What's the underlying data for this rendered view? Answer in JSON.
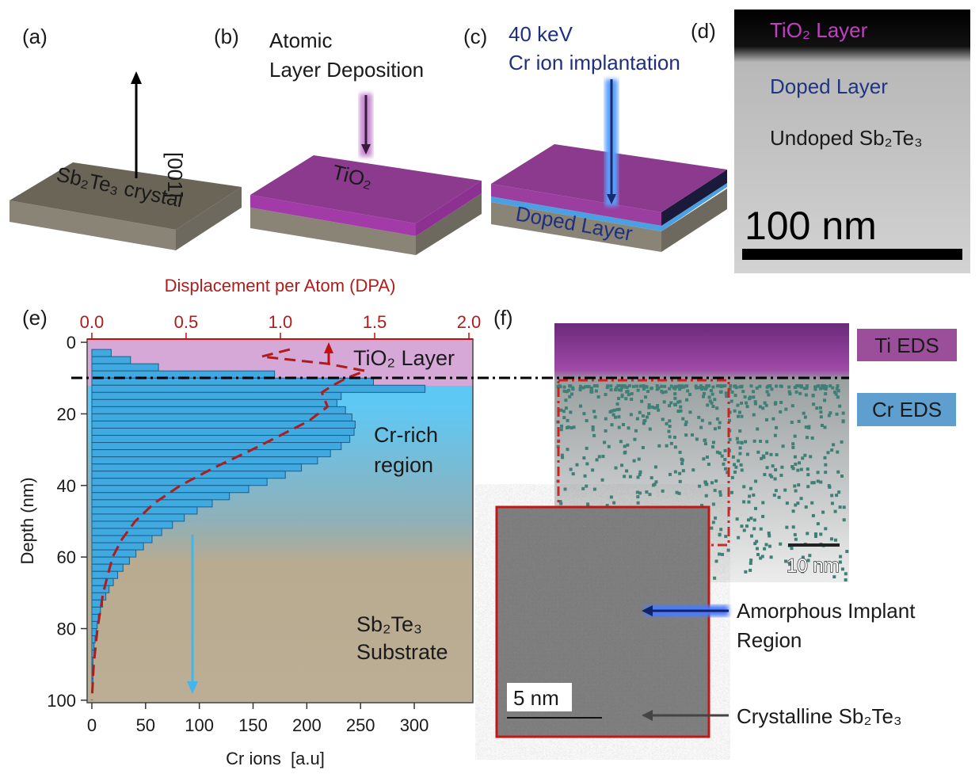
{
  "panels": {
    "a": {
      "label": "(a)",
      "crystal": "Sb₂Te₃ crystal",
      "direction": "[001]"
    },
    "b": {
      "label": "(b)",
      "process": [
        "Atomic",
        "Layer Deposition"
      ],
      "layer": "TiO₂"
    },
    "c": {
      "label": "(c)",
      "process": [
        "40 keV",
        "Cr ion implantation"
      ],
      "layer": "Doped Layer"
    },
    "d": {
      "label": "(d)",
      "layers": [
        "TiO₂ Layer",
        "Doped Layer",
        "Undoped Sb₂Te₃"
      ],
      "scale": "100 nm"
    },
    "e": {
      "label": "(e)"
    },
    "f": {
      "label": "(f)",
      "ti_eds": "Ti EDS",
      "cr_eds": "Cr EDS",
      "map_scale": "10 nm",
      "inset_scale": "5 nm",
      "amorphous": [
        "Amorphous Implant",
        "Region"
      ],
      "crystalline": "Crystalline Sb₂Te₃"
    }
  },
  "chart_data": {
    "type": "histogram",
    "orientation": "horizontal",
    "x_label": "Cr ions  [a.u]",
    "x2_label": "Displacement per Atom (DPA)",
    "y_label": "Depth (nm)",
    "bins": [
      2,
      4,
      6,
      8,
      10,
      12,
      14,
      16,
      18,
      20,
      22,
      24,
      26,
      28,
      30,
      32,
      34,
      36,
      38,
      40,
      42,
      44,
      46,
      48,
      50,
      52,
      54,
      56,
      58,
      60,
      62,
      64,
      66,
      68,
      70,
      72,
      74,
      76,
      78,
      80,
      82,
      84,
      86,
      88,
      90,
      92,
      94,
      96,
      98,
      100
    ],
    "values": [
      18,
      36,
      62,
      170,
      262,
      310,
      232,
      228,
      236,
      242,
      245,
      244,
      240,
      232,
      222,
      210,
      195,
      180,
      163,
      146,
      128,
      112,
      98,
      86,
      75,
      65,
      56,
      48,
      41,
      35,
      29,
      24,
      20,
      16,
      13,
      10,
      8,
      6,
      5,
      4,
      3,
      2,
      2,
      1,
      1,
      1,
      1,
      0,
      0
    ],
    "color": "#3fa9e0",
    "xlim": [
      -4.4,
      354.5
    ],
    "xticks": [
      0,
      50,
      100,
      150,
      200,
      250,
      300
    ],
    "x2lim": [
      -0.025,
      2.021
    ],
    "x2ticks": [
      {
        "value": 0,
        "label": "0.0"
      },
      {
        "value": 0.5,
        "label": "0.5"
      },
      {
        "value": 1,
        "label": "1.0"
      },
      {
        "value": 1.5,
        "label": "1.5"
      },
      {
        "value": 2,
        "label": "2.0"
      }
    ],
    "ylim": [
      -0.9,
      100.7
    ],
    "y_inverted": true,
    "yticks": [
      0,
      20,
      40,
      60,
      80,
      100
    ],
    "overlay": {
      "type": "line",
      "axis": "x2",
      "color": "#b01c1c",
      "dashed": true,
      "depths": [
        2,
        4,
        6,
        8,
        10,
        12,
        14,
        18,
        22,
        26,
        30,
        35,
        40,
        45,
        50,
        55,
        60,
        70,
        80,
        90,
        100
      ],
      "values": [
        1.05,
        0.9,
        1.25,
        1.45,
        1.35,
        1.28,
        1.22,
        1.25,
        1.15,
        1.0,
        0.85,
        0.65,
        0.47,
        0.33,
        0.23,
        0.16,
        0.11,
        0.06,
        0.03,
        0.01,
        0.0
      ]
    },
    "annotations": [
      [
        "TiO₂ Layer"
      ],
      [
        "Cr-rich",
        "region"
      ],
      [
        "Sb₂Te₃",
        "Substrate"
      ]
    ]
  }
}
